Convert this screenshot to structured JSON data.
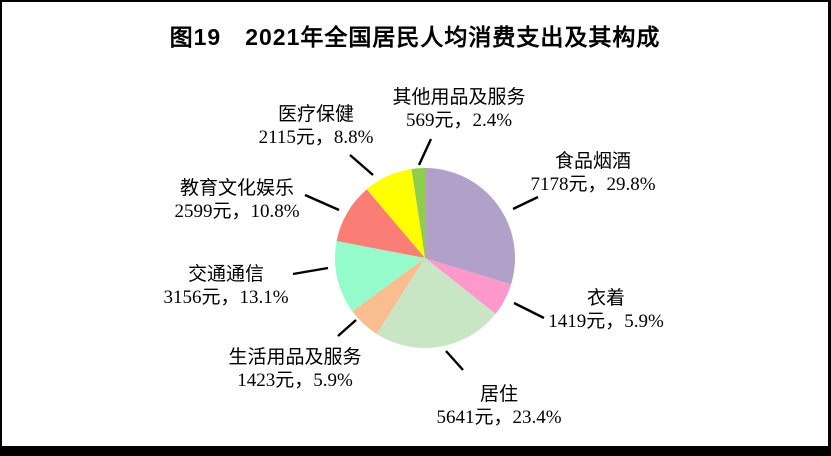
{
  "page": {
    "title": "图19　2021年全国居民人均消费支出及其构成"
  },
  "chart_data": {
    "type": "pie",
    "title": "图19　2021年全国居民人均消费支出及其构成",
    "unit": "元",
    "start_angle_deg": 0,
    "direction": "clockwise",
    "legend_position": "callout-labels",
    "slices": [
      {
        "label": "食品烟酒",
        "value": 7178,
        "percent": 29.8,
        "value_text": "7178元，29.8%",
        "color": "#b1a0c7"
      },
      {
        "label": "衣着",
        "value": 1419,
        "percent": 5.9,
        "value_text": "1419元，5.9%",
        "color": "#ff99cc"
      },
      {
        "label": "居住",
        "value": 5641,
        "percent": 23.4,
        "value_text": "5641元，23.4%",
        "color": "#c9e6c4"
      },
      {
        "label": "生活用品及服务",
        "value": 1423,
        "percent": 5.9,
        "value_text": "1423元，5.9%",
        "color": "#fabd90"
      },
      {
        "label": "交通通信",
        "value": 3156,
        "percent": 13.1,
        "value_text": "3156元，13.1%",
        "color": "#94fccb"
      },
      {
        "label": "教育文化娱乐",
        "value": 2599,
        "percent": 10.8,
        "value_text": "2599元，10.8%",
        "color": "#fb7e76"
      },
      {
        "label": "医疗保健",
        "value": 2115,
        "percent": 8.8,
        "value_text": "2115元，8.8%",
        "color": "#ffff00"
      },
      {
        "label": "其他用品及服务",
        "value": 569,
        "percent": 2.4,
        "value_text": "569元，2.4%",
        "color": "#90cd4d"
      }
    ]
  }
}
